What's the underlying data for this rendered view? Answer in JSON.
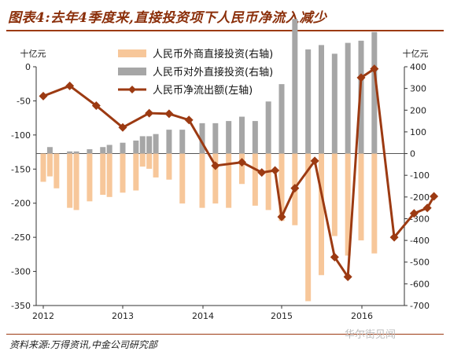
{
  "header": {
    "title": "图表4:去年4季度来,直接投资项下人民币净流入减少",
    "source": "资料来源:万得资讯,中金公司研究部",
    "watermark": "华尔街见闻"
  },
  "chart_data": {
    "type": "bar+line",
    "left_unit": "十亿元",
    "right_unit": "十亿元",
    "left_ylim": [
      -350,
      0
    ],
    "left_ticks": [
      0,
      -50,
      -100,
      -150,
      -200,
      -250,
      -300,
      -350
    ],
    "right_ylim": [
      -700,
      400
    ],
    "right_ticks": [
      400,
      300,
      200,
      100,
      0,
      -100,
      -200,
      -300,
      -400,
      -500,
      -600,
      -700
    ],
    "x_ticks": [
      "2012",
      "2013",
      "2014",
      "2015",
      "2016"
    ],
    "series": [
      {
        "name": "人民币外商直接投资(右轴)",
        "type": "bar",
        "axis": "right",
        "color": "#f7c79a",
        "values": [
          -130,
          -105,
          -160,
          -250,
          -260,
          -220,
          -190,
          -200,
          -180,
          -170,
          -60,
          -70,
          -110,
          -120,
          -230,
          -250,
          -230,
          -250,
          -140,
          -240,
          -260,
          -310,
          -330,
          -680,
          -560,
          -380,
          -470,
          -400,
          -460
        ]
      },
      {
        "name": "人民币对外直接投资(右轴)",
        "type": "bar",
        "axis": "right",
        "color": "#a6a6a6",
        "values": [
          0,
          30,
          0,
          10,
          10,
          20,
          30,
          40,
          50,
          60,
          80,
          80,
          90,
          110,
          110,
          140,
          140,
          150,
          170,
          150,
          240,
          320,
          620,
          480,
          500,
          460,
          510,
          520,
          560
        ]
      },
      {
        "name": "人民币净流出额(左轴)",
        "type": "line",
        "axis": "left",
        "color": "#9c3a12",
        "values": [
          -43,
          -28,
          -57,
          -89,
          -68,
          -69,
          -78,
          -145,
          -140,
          -155,
          -152,
          -220,
          -178,
          -138,
          -279,
          -308,
          -16,
          -3,
          -250,
          -215,
          -207,
          -190
        ]
      }
    ],
    "bar_months": [
      "2012-01",
      "2012-02",
      "2012-03",
      "2012-05",
      "2012-06",
      "2012-08",
      "2012-10",
      "2012-11",
      "2013-01",
      "2013-03",
      "2013-04",
      "2013-05",
      "2013-06",
      "2013-08",
      "2013-10",
      "2014-01",
      "2014-03",
      "2014-05",
      "2014-07",
      "2014-09",
      "2014-11",
      "2015-01",
      "2015-03",
      "2015-05",
      "2015-07",
      "2015-09",
      "2015-11",
      "2016-01",
      "2016-03"
    ],
    "line_months": [
      "2012-01",
      "2012-05",
      "2012-09",
      "2013-01",
      "2013-05",
      "2013-08",
      "2013-11",
      "2014-03",
      "2014-07",
      "2014-10",
      "2014-12",
      "2015-01",
      "2015-03",
      "2015-06",
      "2015-09",
      "2015-11",
      "2016-01",
      "2016-03",
      "2016-06",
      "2016-09",
      "2016-11",
      "2016-12"
    ],
    "legend_position": "top-center"
  }
}
